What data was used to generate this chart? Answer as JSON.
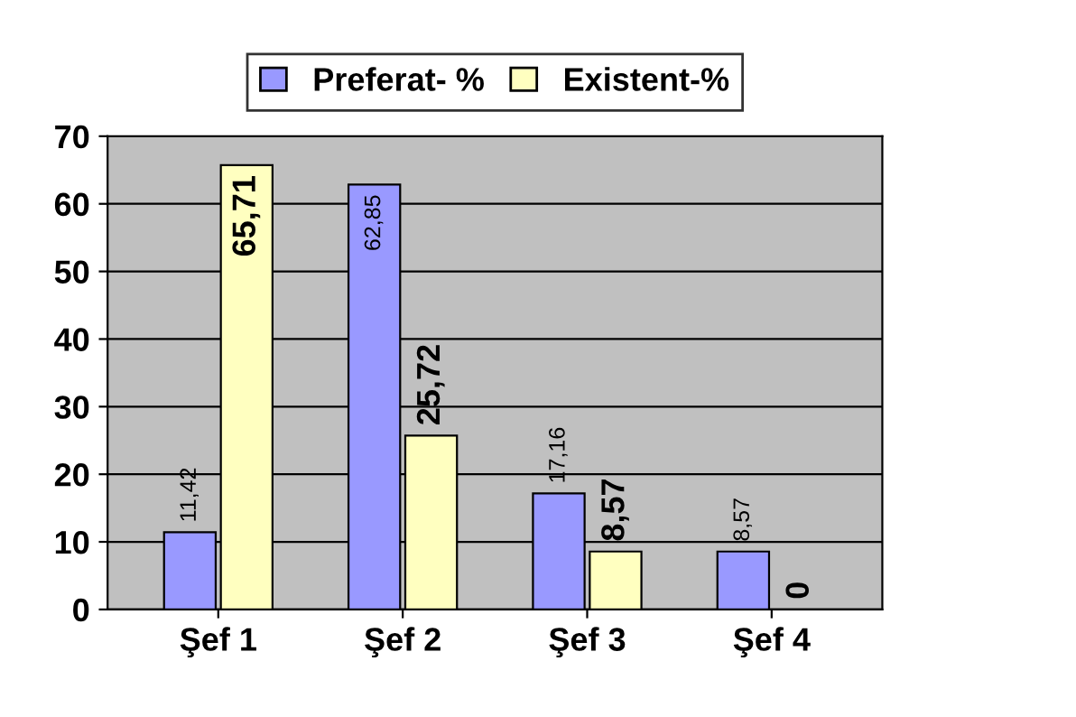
{
  "chart_data": {
    "type": "bar",
    "categories": [
      "Şef 1",
      "Şef 2",
      "Şef 3",
      "Şef 4"
    ],
    "series": [
      {
        "name": "Preferat- %",
        "color": "#9999ff",
        "values": [
          11.42,
          62.85,
          17.16,
          8.57
        ],
        "value_labels": [
          "11,42",
          "62,85",
          "17,16",
          "8,57"
        ]
      },
      {
        "name": "Existent-%",
        "color": "#ffffc0",
        "values": [
          65.71,
          25.72,
          8.57,
          0
        ],
        "value_labels": [
          "65,71",
          "25,72",
          "8,57",
          "0"
        ]
      }
    ],
    "ylim": [
      0,
      70
    ],
    "yticks": [
      0,
      10,
      20,
      30,
      40,
      50,
      60,
      70
    ],
    "grid": "y",
    "legend": "top"
  }
}
